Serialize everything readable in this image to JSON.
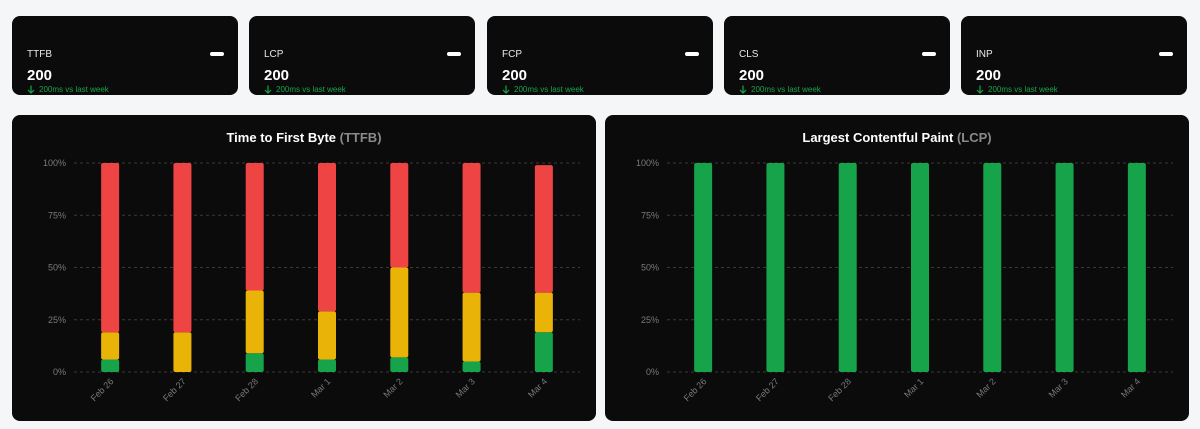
{
  "cards": [
    {
      "title": "TTFB",
      "value": "200",
      "delta": "200ms vs last week"
    },
    {
      "title": "LCP",
      "value": "200",
      "delta": "200ms vs last week"
    },
    {
      "title": "FCP",
      "value": "200",
      "delta": "200ms vs last week"
    },
    {
      "title": "CLS",
      "value": "200",
      "delta": "200ms vs last week"
    },
    {
      "title": "INP",
      "value": "200",
      "delta": "200ms vs last week"
    }
  ],
  "colors": {
    "good": "#16a34a",
    "needs_improvement": "#eab308",
    "poor": "#ef4444",
    "grid": "#3a3a3a",
    "tick": "#7a7a7a"
  },
  "chart_data": [
    {
      "type": "bar",
      "stacked": true,
      "title": "Time to First Byte",
      "title_abbr": "(TTFB)",
      "categories": [
        "Feb 26",
        "Feb 27",
        "Feb 28",
        "Mar 1",
        "Mar 2",
        "Mar 3",
        "Mar 4"
      ],
      "yticks": [
        "0%",
        "25%",
        "50%",
        "75%",
        "100%"
      ],
      "ylim": [
        0,
        100
      ],
      "grid": true,
      "series": [
        {
          "color": "#16a34a",
          "values": [
            6,
            0,
            9,
            6,
            7,
            5,
            19
          ]
        },
        {
          "color": "#eab308",
          "values": [
            13,
            19,
            30,
            23,
            43,
            33,
            19
          ]
        },
        {
          "color": "#ef4444",
          "values": [
            81,
            81,
            61,
            71,
            50,
            62,
            61
          ]
        }
      ]
    },
    {
      "type": "bar",
      "stacked": true,
      "title": "Largest Contentful Paint",
      "title_abbr": "(LCP)",
      "categories": [
        "Feb 26",
        "Feb 27",
        "Feb 28",
        "Mar 1",
        "Mar 2",
        "Mar 3",
        "Mar 4"
      ],
      "yticks": [
        "0%",
        "25%",
        "50%",
        "75%",
        "100%"
      ],
      "ylim": [
        0,
        100
      ],
      "grid": true,
      "series": [
        {
          "color": "#16a34a",
          "values": [
            100,
            100,
            100,
            100,
            100,
            100,
            100
          ]
        }
      ]
    }
  ]
}
